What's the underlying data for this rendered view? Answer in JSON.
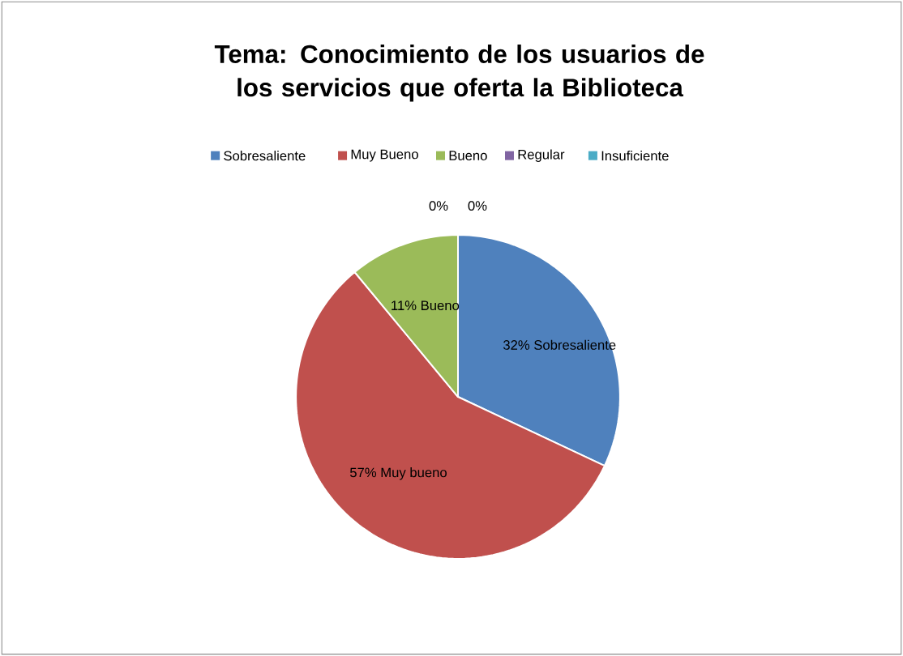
{
  "chart_data": {
    "type": "pie",
    "title": "Tema: Conocimiento de los usuarios de los servicios que oferta la Biblioteca",
    "categories": [
      "Sobresaliente",
      "Muy Bueno",
      "Bueno",
      "Regular",
      "Insuficiente"
    ],
    "values": [
      32,
      57,
      11,
      0,
      0
    ],
    "colors": [
      "#4f81bd",
      "#c0504d",
      "#9bbb59",
      "#8064a2",
      "#4bacc6"
    ],
    "value_labels": [
      "32% Sobresaliente",
      "57% Muy bueno",
      "11% Bueno",
      "0%",
      "0%"
    ],
    "legend": "top"
  }
}
